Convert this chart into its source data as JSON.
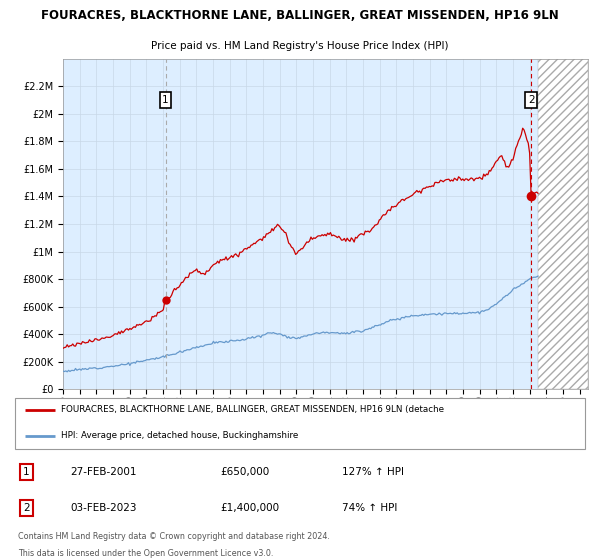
{
  "title_line1": "FOURACRES, BLACKTHORNE LANE, BALLINGER, GREAT MISSENDEN, HP16 9LN",
  "title_line2": "Price paid vs. HM Land Registry's House Price Index (HPI)",
  "bg_color": "#ffffff",
  "grid_color": "#c8d8e8",
  "plot_bg": "#ddeeff",
  "hpi_color": "#6699cc",
  "price_color": "#cc0000",
  "ylim": [
    0,
    2400000
  ],
  "yticks": [
    0,
    200000,
    400000,
    600000,
    800000,
    1000000,
    1200000,
    1400000,
    1600000,
    1800000,
    2000000,
    2200000
  ],
  "ytick_labels": [
    "£0",
    "£200K",
    "£400K",
    "£600K",
    "£800K",
    "£1M",
    "£1.2M",
    "£1.4M",
    "£1.6M",
    "£1.8M",
    "£2M",
    "£2.2M"
  ],
  "sale1_date": 2001.15,
  "sale1_price": 650000,
  "sale1_date_str": "27-FEB-2001",
  "sale1_hpi_pct": "127% ↑ HPI",
  "sale2_date": 2023.09,
  "sale2_price": 1400000,
  "sale2_date_str": "03-FEB-2023",
  "sale2_hpi_pct": "74% ↑ HPI",
  "legend_line1": "FOURACRES, BLACKTHORNE LANE, BALLINGER, GREAT MISSENDEN, HP16 9LN (detache",
  "legend_line2": "HPI: Average price, detached house, Buckinghamshire",
  "footnote1": "Contains HM Land Registry data © Crown copyright and database right 2024.",
  "footnote2": "This data is licensed under the Open Government Licence v3.0.",
  "xmin": 1995.0,
  "xmax": 2026.5,
  "future_start": 2023.5
}
